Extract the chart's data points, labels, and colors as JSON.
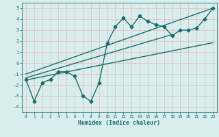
{
  "xlabel": "Humidex (Indice chaleur)",
  "xlim": [
    -0.5,
    23.5
  ],
  "ylim": [
    -4.5,
    5.5
  ],
  "xticks": [
    0,
    1,
    2,
    3,
    4,
    5,
    6,
    7,
    8,
    9,
    10,
    11,
    12,
    13,
    14,
    15,
    16,
    17,
    18,
    19,
    20,
    21,
    22,
    23
  ],
  "yticks": [
    -4,
    -3,
    -2,
    -1,
    0,
    1,
    2,
    3,
    4,
    5
  ],
  "bg_color": "#d8eeee",
  "grid_color": "#e8b8b8",
  "line_color": "#1a6b6b",
  "data_x": [
    0,
    1,
    2,
    3,
    4,
    5,
    6,
    7,
    8,
    9,
    10,
    11,
    12,
    13,
    14,
    15,
    16,
    17,
    18,
    19,
    20,
    21,
    22,
    23
  ],
  "data_y": [
    -1.5,
    -3.5,
    -1.8,
    -1.5,
    -0.8,
    -0.8,
    -1.2,
    -3.0,
    -3.5,
    -1.8,
    1.8,
    3.3,
    4.1,
    3.3,
    4.3,
    3.8,
    3.5,
    3.3,
    2.5,
    3.0,
    3.0,
    3.2,
    4.0,
    5.0
  ],
  "line1_x": [
    0,
    18
  ],
  "line1_y": [
    -1.35,
    2.6
  ],
  "line2_x": [
    0,
    23
  ],
  "line2_y": [
    -1.55,
    1.85
  ],
  "line3_x": [
    0,
    23
  ],
  "line3_y": [
    -1.0,
    5.0
  ],
  "marker": "D",
  "markersize": 2.5,
  "linewidth": 1.0
}
